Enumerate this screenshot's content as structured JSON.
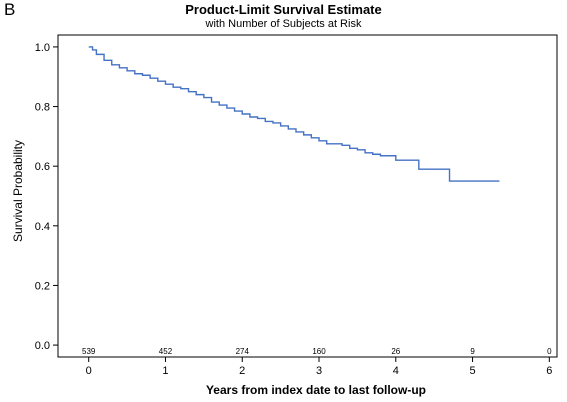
{
  "panel_label": "B",
  "chart_data": {
    "type": "line",
    "title": "Product-Limit Survival Estimate",
    "subtitle": "with Number of Subjects at Risk",
    "xlabel": "Years from index date to last follow-up",
    "ylabel": "Survival Probability",
    "xlim": [
      -0.4,
      6.1
    ],
    "ylim": [
      -0.04,
      1.04
    ],
    "xticks": [
      0,
      1,
      2,
      3,
      4,
      5,
      6
    ],
    "yticks": [
      0.0,
      0.2,
      0.4,
      0.6,
      0.8,
      1.0
    ],
    "ytick_labels": [
      "0.0",
      "0.2",
      "0.4",
      "0.6",
      "0.8",
      "1.0"
    ],
    "grid": false,
    "line_color": "#4472c4",
    "series": [
      {
        "x": [
          0,
          0.05,
          0.1,
          0.2,
          0.3,
          0.4,
          0.5,
          0.6,
          0.7,
          0.8,
          0.9,
          1.0,
          1.1,
          1.2,
          1.3,
          1.4,
          1.5,
          1.6,
          1.7,
          1.8,
          1.9,
          2.0,
          2.1,
          2.2,
          2.3,
          2.4,
          2.5,
          2.6,
          2.7,
          2.8,
          2.9,
          3.0,
          3.1,
          3.2,
          3.3,
          3.4,
          3.5,
          3.6,
          3.7,
          3.8,
          3.9,
          4.0,
          4.3,
          4.7,
          5.35
        ],
        "y": [
          1.0,
          0.99,
          0.975,
          0.955,
          0.94,
          0.93,
          0.92,
          0.91,
          0.905,
          0.895,
          0.885,
          0.875,
          0.865,
          0.86,
          0.85,
          0.84,
          0.83,
          0.815,
          0.805,
          0.795,
          0.785,
          0.775,
          0.765,
          0.76,
          0.75,
          0.745,
          0.735,
          0.725,
          0.715,
          0.705,
          0.695,
          0.685,
          0.675,
          0.675,
          0.67,
          0.66,
          0.655,
          0.645,
          0.64,
          0.635,
          0.635,
          0.62,
          0.59,
          0.55,
          0.55
        ]
      }
    ],
    "at_risk": {
      "x": [
        0,
        1,
        2,
        3,
        4,
        5,
        6
      ],
      "counts": [
        "539",
        "452",
        "274",
        "160",
        "26",
        "9",
        "0"
      ]
    }
  }
}
